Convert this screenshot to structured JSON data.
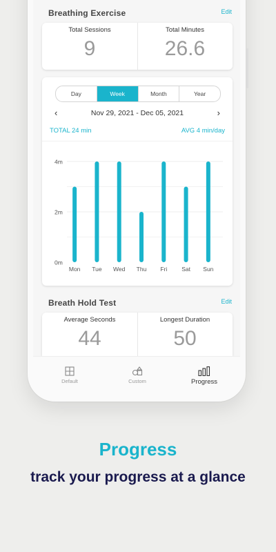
{
  "breathing": {
    "title": "Breathing Exercise",
    "edit": "Edit",
    "total_sessions_label": "Total Sessions",
    "total_sessions_value": "9",
    "total_minutes_label": "Total Minutes",
    "total_minutes_value": "26.6"
  },
  "period_tabs": [
    "Day",
    "Week",
    "Month",
    "Year"
  ],
  "period_active": "Week",
  "date_range": "Nov 29, 2021 - Dec 05, 2021",
  "total_text": "TOTAL 24 min",
  "avg_text": "AVG 4 min/day",
  "chart_data": {
    "type": "bar",
    "categories": [
      "Mon",
      "Tue",
      "Wed",
      "Thu",
      "Fri",
      "Sat",
      "Sun"
    ],
    "values": [
      3,
      4,
      4,
      2,
      4,
      3,
      4
    ],
    "ytick_labels": [
      "4m",
      "2m",
      "0m"
    ],
    "ylim": [
      0,
      4
    ],
    "color": "#1ab4cc",
    "grid": true
  },
  "breath_hold": {
    "title": "Breath Hold Test",
    "edit": "Edit",
    "avg_label": "Average Seconds",
    "avg_value": "44",
    "longest_label": "Longest Duration",
    "longest_value": "50"
  },
  "tabs": [
    {
      "label": "Default",
      "icon": "grid-icon"
    },
    {
      "label": "Custom",
      "icon": "shapes-icon"
    },
    {
      "label": "Progress",
      "icon": "bar-chart-icon"
    }
  ],
  "promo": {
    "headline": "Progress",
    "subline": "track your progress at a glance"
  },
  "colors": {
    "accent": "#1ab4cc",
    "navy": "#1a1a4e"
  }
}
